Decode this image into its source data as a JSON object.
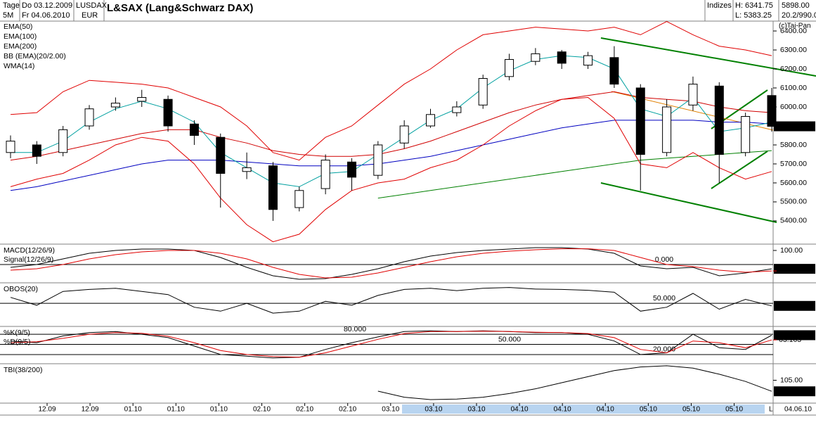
{
  "chart_data": {
    "type": "candlestick",
    "title": "L&SAX (Lang&Schwarz DAX)",
    "header": {
      "period": "Tage",
      "interval": "5M",
      "from": "Do 03.12.2009",
      "to": "Fr 04.06.2010",
      "symbol": "LUSDAX",
      "currency": "EUR",
      "group": "Indizes",
      "high": "H: 6341.75",
      "low": "L: 5383.25",
      "price": "5898.00",
      "volume": "20.2/990.0"
    },
    "copyright": "(c)Tai-Pan",
    "open": [
      5760,
      5800,
      5760,
      5900,
      6000,
      6030,
      6040,
      5910,
      5840,
      5660,
      5690,
      5470,
      5570,
      5710,
      5640,
      5810,
      5900,
      5970,
      6010,
      6160,
      6240,
      6290,
      6220,
      6260,
      6100,
      5760,
      6010,
      6110,
      5760,
      6060
    ],
    "high": [
      5850,
      5820,
      5900,
      6010,
      6050,
      6090,
      6060,
      5930,
      5860,
      5760,
      5710,
      5580,
      5750,
      5730,
      5820,
      5930,
      5990,
      6030,
      6170,
      6280,
      6310,
      6300,
      6290,
      6320,
      6120,
      6040,
      6160,
      6130,
      5970,
      6100
    ],
    "low": [
      5730,
      5700,
      5740,
      5880,
      5980,
      6000,
      5870,
      5800,
      5470,
      5620,
      5400,
      5450,
      5540,
      5560,
      5620,
      5780,
      5890,
      5950,
      5990,
      6140,
      6220,
      6200,
      6200,
      6100,
      5560,
      5740,
      5980,
      5600,
      5740,
      5870
    ],
    "close": [
      5820,
      5740,
      5880,
      5990,
      6020,
      6050,
      5900,
      5850,
      5650,
      5680,
      5460,
      5560,
      5720,
      5630,
      5800,
      5900,
      5960,
      6000,
      6150,
      6250,
      6280,
      6230,
      6270,
      6120,
      5750,
      6000,
      6120,
      5750,
      5950,
      5898
    ],
    "ylim": [
      5285,
      6452
    ],
    "yticks": [
      {
        "value": 5400,
        "label": "5400.00"
      },
      {
        "value": 5500,
        "label": "5500.00"
      },
      {
        "value": 5600,
        "label": "5600.00"
      },
      {
        "value": 5700,
        "label": "5700.00"
      },
      {
        "value": 5800,
        "label": "5800.00"
      },
      {
        "value": 5900,
        "label": "5900.00"
      },
      {
        "value": 6000,
        "label": "6000.00"
      },
      {
        "value": 6100,
        "label": "6100.00"
      },
      {
        "value": 6200,
        "label": "6200.00"
      },
      {
        "value": 6300,
        "label": "6300.00"
      },
      {
        "value": 6400,
        "label": "6400.00"
      }
    ],
    "last_price": {
      "value": 5898,
      "label": "5898.00"
    },
    "overlays": [
      {
        "name": "EMA(50)",
        "color": "#d00000",
        "values": [
          5720,
          5740,
          5770,
          5800,
          5830,
          5860,
          5880,
          5880,
          5840,
          5810,
          5770,
          5750,
          5740,
          5740,
          5750,
          5780,
          5820,
          5870,
          5920,
          5970,
          6010,
          6040,
          6060,
          6080,
          6050,
          6040,
          6030,
          6000,
          5980,
          5970
        ]
      },
      {
        "name": "EMA(100)",
        "color": "#0000c0",
        "values": [
          5560,
          5580,
          5610,
          5640,
          5670,
          5700,
          5720,
          5720,
          5720,
          5710,
          5700,
          5690,
          5690,
          5690,
          5700,
          5720,
          5740,
          5770,
          5800,
          5830,
          5860,
          5890,
          5910,
          5930,
          5930,
          5930,
          5930,
          5920,
          5920,
          5910
        ]
      },
      {
        "name": "EMA(200)",
        "color": "#008000",
        "values": [
          null,
          null,
          null,
          null,
          null,
          null,
          null,
          null,
          null,
          null,
          null,
          null,
          null,
          null,
          5520,
          5540,
          5560,
          5580,
          5600,
          5620,
          5640,
          5660,
          5680,
          5700,
          5720,
          5730,
          5740,
          5750,
          5760,
          5770
        ]
      },
      {
        "name": "BB (EMA)(20/2.00)",
        "color": "#e00000",
        "text_color": "#000080",
        "upper": [
          5960,
          5970,
          6080,
          6140,
          6130,
          6120,
          6100,
          6050,
          6000,
          5900,
          5760,
          5720,
          5840,
          5900,
          6010,
          6120,
          6200,
          6300,
          6380,
          6400,
          6420,
          6410,
          6400,
          6420,
          6380,
          6450,
          6380,
          6320,
          6300,
          6270
        ],
        "lower": [
          5580,
          5620,
          5650,
          5720,
          5800,
          5840,
          5820,
          5700,
          5520,
          5380,
          5290,
          5330,
          5460,
          5560,
          5600,
          5620,
          5680,
          5720,
          5800,
          5900,
          5980,
          6040,
          6050,
          5940,
          5700,
          5680,
          5760,
          5680,
          5620,
          5660
        ]
      },
      {
        "name": "WMA(14)",
        "color": "#00a0a0",
        "values": [
          5760,
          5760,
          5820,
          5920,
          5990,
          6030,
          5990,
          5920,
          5760,
          5680,
          5600,
          5580,
          5650,
          5660,
          5750,
          5840,
          5930,
          5990,
          6100,
          6190,
          6250,
          6270,
          6260,
          6200,
          5990,
          5950,
          6050,
          5870,
          5890,
          5920
        ]
      }
    ],
    "x_labels": [
      "12.09",
      "12.09",
      "01.10",
      "01.10",
      "01.10",
      "02.10",
      "02.10",
      "02.10",
      "03.10",
      "03.10",
      "03.10",
      "04.10",
      "04.10",
      "04.10",
      "05.10",
      "05.10",
      "05.10"
    ],
    "x_end_label": "L",
    "x_last_date": "04.06.10",
    "panels": [
      {
        "name": "MACD",
        "ylim": [
          -120,
          140
        ],
        "yticks": [
          {
            "value": 100,
            "label": "100.00"
          }
        ],
        "ref_lines": [
          {
            "value": 0,
            "label": "0.000"
          }
        ],
        "series": [
          {
            "name": "MACD(12/26/9)",
            "color": "#000000",
            "last_label": "-30.5796",
            "values": [
              -20,
              0,
              40,
              80,
              100,
              110,
              110,
              100,
              50,
              -20,
              -80,
              -105,
              -100,
              -70,
              -30,
              20,
              60,
              85,
              100,
              110,
              120,
              120,
              110,
              80,
              -10,
              -30,
              -20,
              -80,
              -60,
              -30.5796
            ]
          },
          {
            "name": "Signal(12/26/9)",
            "color": "#e00000",
            "last_label": "-45.5002",
            "values": [
              -40,
              -30,
              0,
              40,
              70,
              90,
              100,
              100,
              80,
              40,
              -20,
              -70,
              -95,
              -90,
              -60,
              -20,
              20,
              55,
              80,
              95,
              105,
              112,
              112,
              100,
              50,
              0,
              -15,
              -40,
              -55,
              -45.5002
            ]
          }
        ]
      },
      {
        "name": "OBOS",
        "ylim": [
          -5,
          100
        ],
        "yticks": [],
        "ref_lines": [
          {
            "value": 50,
            "label": "50.000"
          }
        ],
        "series": [
          {
            "name": "OBOS(20)",
            "color": "#000000",
            "last_label": "43.428",
            "values": [
              65,
              45,
              80,
              85,
              88,
              80,
              72,
              40,
              30,
              50,
              25,
              30,
              55,
              45,
              70,
              85,
              88,
              82,
              88,
              90,
              86,
              85,
              83,
              78,
              30,
              40,
              75,
              35,
              60,
              43.428
            ]
          }
        ]
      },
      {
        "name": "Stochastic",
        "ylim": [
          -3,
          101
        ],
        "yticks": [],
        "ref_lines": [
          {
            "value": 80,
            "label": "80.000"
          },
          {
            "value": 50,
            "label": "50.000"
          },
          {
            "value": 20,
            "label": "20.000"
          }
        ],
        "series": [
          {
            "name": "%K(9/5)",
            "color": "#000000",
            "last_label": "77.150",
            "values": [
              60,
              55,
              75,
              85,
              88,
              80,
              70,
              45,
              20,
              15,
              10,
              12,
              35,
              55,
              72,
              88,
              90,
              88,
              90,
              88,
              85,
              85,
              80,
              60,
              20,
              25,
              80,
              40,
              35,
              77.15
            ]
          },
          {
            "name": "%D(9/5)",
            "color": "#e00000",
            "last_label": "63.163",
            "values": [
              55,
              58,
              68,
              80,
              85,
              83,
              74,
              55,
              32,
              20,
              14,
              12,
              25,
              45,
              65,
              82,
              88,
              88,
              89,
              88,
              86,
              85,
              82,
              70,
              35,
              25,
              60,
              55,
              40,
              63.163
            ]
          }
        ]
      },
      {
        "name": "TBI",
        "ylim": [
          103.17,
          106.31
        ],
        "yticks": [
          {
            "value": 105,
            "label": "105.00"
          }
        ],
        "ref_lines": [],
        "series": [
          {
            "name": "TBI(38/200)",
            "color": "#000000",
            "last_label": "104.088",
            "values": [
              null,
              null,
              null,
              null,
              null,
              null,
              null,
              null,
              null,
              null,
              null,
              null,
              null,
              null,
              104.1,
              103.6,
              103.4,
              103.45,
              103.6,
              103.9,
              104.3,
              104.8,
              105.3,
              105.8,
              106.1,
              106.2,
              106.0,
              105.5,
              104.9,
              104.088
            ]
          }
        ]
      }
    ]
  }
}
